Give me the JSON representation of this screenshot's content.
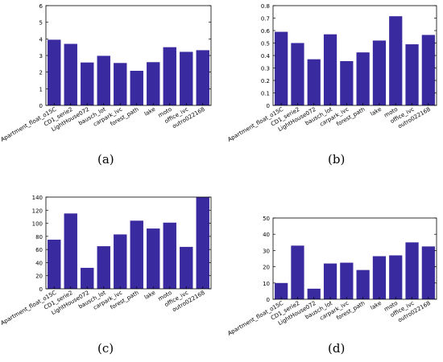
{
  "accent_color": "#3a2aa0",
  "chart_data": [
    {
      "type": "bar",
      "caption": "(a)",
      "categories": [
        "Apartment_float_o15C",
        "CD1_serie2",
        "LightHouse072",
        "bausch_lot",
        "carpark_ivc",
        "forest_path",
        "lake",
        "moto",
        "office_ivc",
        "outro022168"
      ],
      "values": [
        3.95,
        3.7,
        2.58,
        2.98,
        2.55,
        2.08,
        2.6,
        3.5,
        3.22,
        3.32
      ],
      "ylim": [
        0,
        6
      ],
      "yticks": [
        0,
        1,
        2,
        3,
        4,
        5,
        6
      ],
      "ytick_labels": [
        "0",
        "1",
        "2",
        "3",
        "4",
        "5",
        "6"
      ],
      "grid": false
    },
    {
      "type": "bar",
      "caption": "(b)",
      "categories": [
        "Apartment_float_o15C",
        "CD1_serie2",
        "LightHouse072",
        "bausch_lot",
        "carpark_ivc",
        "forest_path",
        "lake",
        "moto",
        "office_ivc",
        "outro022168"
      ],
      "values": [
        0.59,
        0.5,
        0.37,
        0.57,
        0.355,
        0.425,
        0.52,
        0.715,
        0.49,
        0.565
      ],
      "ylim": [
        0,
        0.8
      ],
      "yticks": [
        0,
        0.1,
        0.2,
        0.3,
        0.4,
        0.5,
        0.6,
        0.7,
        0.8
      ],
      "ytick_labels": [
        "0",
        "0.1",
        "0.2",
        "0.3",
        "0.4",
        "0.5",
        "0.6",
        "0.7",
        "0.8"
      ],
      "grid": false
    },
    {
      "type": "bar",
      "caption": "(c)",
      "categories": [
        "Apartment_float_o15C",
        "CD1_serie2",
        "LightHouse072",
        "bausch_lot",
        "carpark_ivc",
        "forest_path",
        "lake",
        "moto",
        "office_ivc",
        "outro022168"
      ],
      "values": [
        75,
        115,
        32,
        65,
        83,
        104,
        92,
        101,
        64,
        140
      ],
      "ylim": [
        0,
        140
      ],
      "yticks": [
        0,
        20,
        40,
        60,
        80,
        100,
        120,
        140
      ],
      "ytick_labels": [
        "0",
        "20",
        "40",
        "60",
        "80",
        "100",
        "120",
        "140"
      ],
      "grid": false
    },
    {
      "type": "bar",
      "caption": "(d)",
      "categories": [
        "Apartment_float_o15C",
        "CD1_serie2",
        "LightHouse072",
        "bausch_lot",
        "carpark_ivc",
        "forest_path",
        "lake",
        "moto",
        "office_ivc",
        "outro022168"
      ],
      "values": [
        10,
        33,
        6.5,
        22,
        22.5,
        18,
        26.5,
        27,
        35,
        32.5
      ],
      "ylim": [
        0,
        50
      ],
      "yticks": [
        0,
        10,
        20,
        30,
        40,
        50
      ],
      "ytick_labels": [
        "0",
        "10",
        "20",
        "30",
        "40",
        "50"
      ],
      "grid": false
    }
  ]
}
